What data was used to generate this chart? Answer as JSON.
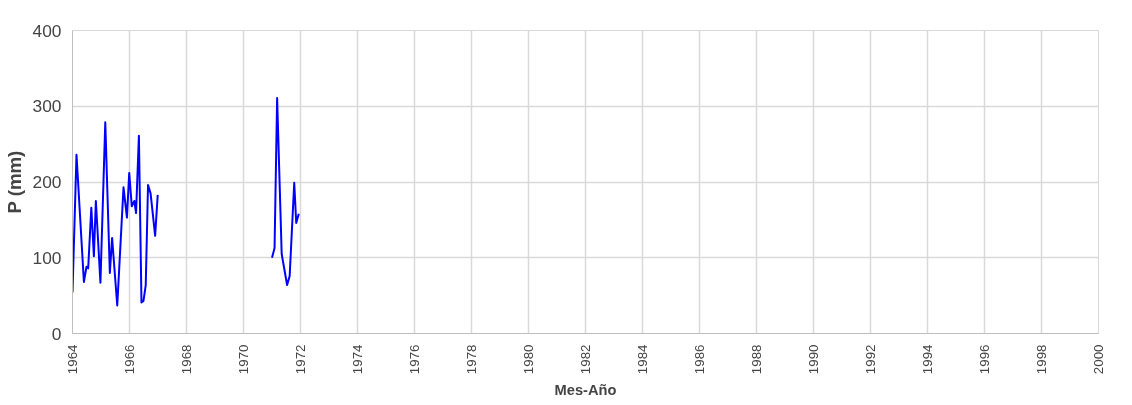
{
  "chart_data": {
    "type": "line",
    "xlabel": "Mes-Año",
    "ylabel": "P (mm)",
    "x": [
      1964.0,
      1964.14,
      1964.4,
      1964.49,
      1964.55,
      1964.66,
      1964.75,
      1964.82,
      1964.98,
      1965.15,
      1965.31,
      1965.39,
      1965.57,
      1965.79,
      1965.91,
      1965.99,
      1966.08,
      1966.17,
      1966.23,
      1966.33,
      1966.42,
      1966.49,
      1966.57,
      1966.65,
      1966.74,
      1966.9,
      1966.99,
      1969.0,
      1971.0,
      1971.09,
      1971.18,
      1971.34,
      1971.53,
      1971.62,
      1971.78,
      1971.85,
      1971.94
    ],
    "series": [
      {
        "color": "#0000ff",
        "values": [
          54,
          236,
          68,
          88,
          86,
          166,
          102,
          175,
          67,
          279,
          80,
          126,
          37,
          193,
          153,
          212,
          168,
          175,
          159,
          261,
          41,
          43,
          64,
          196,
          185,
          129,
          183,
          null,
          100,
          113,
          311,
          105,
          64,
          76,
          199,
          146,
          158
        ]
      }
    ],
    "xlim": [
      1964,
      2000
    ],
    "xticks": [
      1964,
      1966,
      1968,
      1970,
      1972,
      1974,
      1976,
      1978,
      1980,
      1982,
      1984,
      1986,
      1988,
      1990,
      1992,
      1994,
      1996,
      1998,
      2000
    ],
    "ylim": [
      0,
      400
    ],
    "yticks": [
      0,
      100,
      200,
      300,
      400
    ],
    "grid": true,
    "marker": "none",
    "line_style": "solid"
  }
}
